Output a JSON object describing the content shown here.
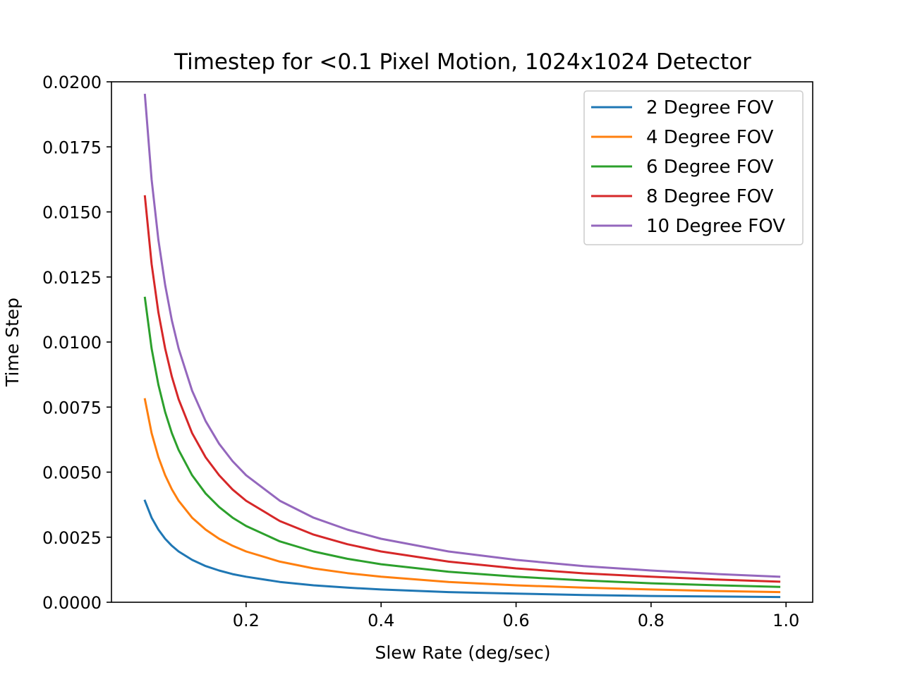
{
  "chart_data": {
    "type": "line",
    "title": "Timestep for <0.1 Pixel Motion, 1024x1024 Detector",
    "xlabel": "Slew Rate (deg/sec)",
    "ylabel": "Time Step",
    "xlim": [
      0.0005,
      1.0395
    ],
    "ylim": [
      0.0,
      0.02
    ],
    "x_ticks": [
      0.2,
      0.4,
      0.6,
      0.8,
      1.0
    ],
    "x_tick_labels": [
      "0.2",
      "0.4",
      "0.6",
      "0.8",
      "1.0"
    ],
    "y_ticks": [
      0.0,
      0.0025,
      0.005,
      0.0075,
      0.01,
      0.0125,
      0.015,
      0.0175,
      0.02
    ],
    "y_tick_labels": [
      "0.0000",
      "0.0025",
      "0.0050",
      "0.0075",
      "0.0100",
      "0.0125",
      "0.0150",
      "0.0175",
      "0.0200"
    ],
    "grid": false,
    "legend_position": "top-right",
    "x": [
      0.05,
      0.06,
      0.07,
      0.08,
      0.09,
      0.1,
      0.12,
      0.14,
      0.16,
      0.18,
      0.2,
      0.25,
      0.3,
      0.35,
      0.4,
      0.5,
      0.6,
      0.7,
      0.8,
      0.9,
      0.99
    ],
    "series": [
      {
        "name": "2 Degree FOV",
        "color": "#1f77b4",
        "values": [
          0.0039,
          0.00325,
          0.00279,
          0.00244,
          0.00217,
          0.00195,
          0.00163,
          0.00139,
          0.00122,
          0.00108,
          0.00098,
          0.00078,
          0.00065,
          0.00056,
          0.00049,
          0.00039,
          0.00033,
          0.00028,
          0.00024,
          0.00022,
          0.0002
        ]
      },
      {
        "name": "4 Degree FOV",
        "color": "#ff7f0e",
        "values": [
          0.0078,
          0.0065,
          0.00558,
          0.00488,
          0.00434,
          0.0039,
          0.00325,
          0.00279,
          0.00244,
          0.00217,
          0.00195,
          0.00156,
          0.0013,
          0.00112,
          0.00098,
          0.00078,
          0.00065,
          0.00056,
          0.00049,
          0.00043,
          0.00039
        ]
      },
      {
        "name": "6 Degree FOV",
        "color": "#2ca02c",
        "values": [
          0.0117,
          0.00975,
          0.00836,
          0.00731,
          0.0065,
          0.00585,
          0.00488,
          0.00418,
          0.00366,
          0.00325,
          0.00293,
          0.00234,
          0.00195,
          0.00167,
          0.00146,
          0.00117,
          0.00098,
          0.00084,
          0.00073,
          0.00065,
          0.00059
        ]
      },
      {
        "name": "8 Degree FOV",
        "color": "#d62728",
        "values": [
          0.0156,
          0.013,
          0.01114,
          0.00975,
          0.00867,
          0.0078,
          0.0065,
          0.00557,
          0.00488,
          0.00433,
          0.0039,
          0.00312,
          0.0026,
          0.00223,
          0.00195,
          0.00156,
          0.0013,
          0.00111,
          0.00098,
          0.00087,
          0.00079
        ]
      },
      {
        "name": "10 Degree FOV",
        "color": "#9467bd",
        "values": [
          0.0195,
          0.01625,
          0.01393,
          0.01219,
          0.01083,
          0.00975,
          0.00813,
          0.00696,
          0.00609,
          0.00542,
          0.00488,
          0.0039,
          0.00325,
          0.00279,
          0.00244,
          0.00195,
          0.00163,
          0.00139,
          0.00122,
          0.00108,
          0.00098
        ]
      }
    ]
  }
}
